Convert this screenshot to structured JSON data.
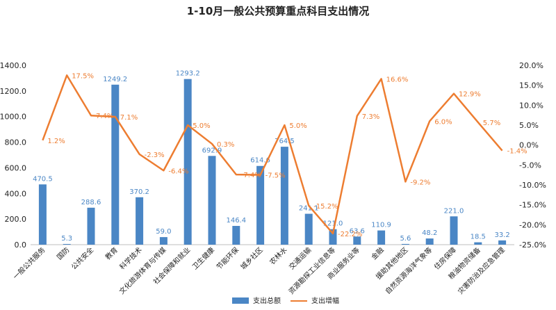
{
  "chart_data": {
    "type": "bar",
    "title": "1-10月一般公共预算重点科目支出情况",
    "categories": [
      "一般公共服务",
      "国防",
      "公共安全",
      "教育",
      "科学技术",
      "文化旅游体育与传媒",
      "社会保障和就业",
      "卫生健康",
      "节能环保",
      "城乡社区",
      "农林水",
      "交通运输",
      "资源勘探工业信息等",
      "商业服务业等",
      "金融",
      "援助其他地区",
      "自然资源海洋气象等",
      "住房保障",
      "粮油物资储备",
      "灾害防治及应急管理"
    ],
    "series": [
      {
        "name": "支出总额",
        "type": "bar",
        "axis": "left",
        "color": "#4a86c5",
        "values": [
          470.5,
          5.3,
          288.6,
          1249.2,
          370.2,
          59.0,
          1293.2,
          692.9,
          146.4,
          614.6,
          764.5,
          241.1,
          121.0,
          63.6,
          110.9,
          5.6,
          48.2,
          221.0,
          18.5,
          33.2
        ],
        "labels": [
          "470.5",
          "5.3",
          "288.6",
          "1249.2",
          "370.2",
          "59.0",
          "1293.2",
          "692.9",
          "146.4",
          "614.6",
          "764.5",
          "241.1",
          "121.0",
          "63.6",
          "110.9",
          "5.6",
          "48.2",
          "221.0",
          "18.5",
          "33.2"
        ]
      },
      {
        "name": "支出增幅",
        "type": "line",
        "axis": "right",
        "color": "#ed7d31",
        "values": [
          1.2,
          17.5,
          7.4,
          7.1,
          -2.3,
          -6.4,
          5.0,
          0.3,
          -7.4,
          -7.5,
          5.0,
          -15.2,
          -22.2,
          7.3,
          16.6,
          -9.2,
          6.0,
          12.9,
          5.7,
          -1.4
        ],
        "labels": [
          "1.2%",
          "17.5%",
          "7.4%",
          "7.1%",
          "-2.3%",
          "-6.4%",
          "5.0%",
          "0.3%",
          "-7.4%",
          "-7.5%",
          "5.0%",
          "-15.2%",
          "-22.2%",
          "7.3%",
          "16.6%",
          "-9.2%",
          "6.0%",
          "12.9%",
          "5.7%",
          "-1.4%"
        ]
      }
    ],
    "y_left": {
      "min": 0,
      "max": 1400,
      "ticks": [
        "0.0",
        "200.0",
        "400.0",
        "600.0",
        "800.0",
        "1000.0",
        "1200.0",
        "1400.0"
      ]
    },
    "y_right": {
      "min": -25,
      "max": 20,
      "ticks": [
        "-25.0%",
        "-20.0%",
        "-15.0%",
        "-10.0%",
        "-5.0%",
        "0.0%",
        "5.0%",
        "10.0%",
        "15.0%",
        "20.0%"
      ]
    },
    "grid": false,
    "legend": "bottom"
  }
}
